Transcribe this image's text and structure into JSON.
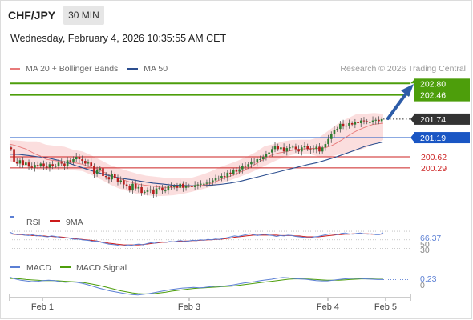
{
  "header": {
    "symbol": "CHF/JPY",
    "timeframe": "30 MIN",
    "datetime": "Wednesday, February 4, 2026 10:35:55 AM CET",
    "copyright": "Research © 2026 Trading Central"
  },
  "legend": {
    "ma20_label": "MA 20 + Bollinger Bands",
    "ma50_label": "MA 50",
    "ma20_color": "#e87a7a",
    "ma50_color": "#2c4e8f"
  },
  "chart_data": [
    {
      "type": "candlestick",
      "title": "CHF/JPY 30 MIN",
      "x_ticks": [
        "Feb 1",
        "Feb 3",
        "Feb 4",
        "Feb 5"
      ],
      "ylim": [
        199.1,
        202.95
      ],
      "levels": [
        {
          "value": 202.8,
          "label": "202.80",
          "kind": "target",
          "color": "#4d9e0b"
        },
        {
          "value": 202.46,
          "label": "202.46",
          "kind": "target",
          "color": "#4d9e0b"
        },
        {
          "value": 201.74,
          "label": "201.74",
          "kind": "last_price",
          "color": "#333333"
        },
        {
          "value": 201.19,
          "label": "201.19",
          "kind": "pivot",
          "color": "#1a56c4"
        },
        {
          "value": 200.62,
          "label": "200.62",
          "kind": "support",
          "color": "#cc2222"
        },
        {
          "value": 200.29,
          "label": "200.29",
          "kind": "support",
          "color": "#cc2222"
        }
      ],
      "candles_close": [
        200.85,
        200.48,
        200.42,
        200.52,
        200.38,
        200.45,
        200.33,
        200.3,
        200.38,
        200.35,
        200.42,
        200.33,
        200.3,
        200.4,
        200.35,
        200.35,
        200.45,
        200.42,
        200.35,
        200.52,
        200.48,
        200.55,
        200.62,
        200.55,
        200.5,
        200.42,
        200.45,
        200.35,
        200.12,
        200.22,
        200.28,
        200.05,
        200.02,
        199.95,
        200.1,
        200.0,
        199.88,
        199.92,
        199.8,
        199.75,
        199.62,
        199.82,
        199.68,
        199.72,
        199.55,
        199.58,
        199.62,
        199.65,
        199.52,
        199.68,
        199.7,
        199.62,
        199.62,
        199.75,
        199.72,
        199.75,
        199.7,
        199.82,
        199.7,
        199.76,
        199.76,
        199.72,
        199.78,
        199.8,
        199.82,
        199.82,
        199.85,
        199.88,
        199.92,
        199.98,
        200.0,
        200.05,
        200.02,
        200.15,
        200.12,
        200.22,
        200.18,
        200.25,
        200.35,
        200.32,
        200.4,
        200.48,
        200.45,
        200.55,
        200.55,
        200.62,
        200.7,
        200.75,
        200.85,
        200.95,
        200.85,
        200.9,
        200.78,
        200.88,
        200.9,
        200.92,
        200.85,
        200.78,
        200.9,
        200.95,
        200.85,
        200.82,
        200.85,
        200.92,
        200.78,
        200.9,
        201.0,
        201.15,
        201.3,
        201.42,
        201.45,
        201.6,
        201.52,
        201.55,
        201.62,
        201.58,
        201.65,
        201.62,
        201.7,
        201.68,
        201.65,
        201.65,
        201.7,
        201.72,
        201.68,
        201.74
      ],
      "ma20": [
        201.0,
        200.96,
        200.91,
        200.86,
        200.78,
        200.7,
        200.64,
        200.55,
        200.52,
        200.5,
        200.49,
        200.47,
        200.45,
        200.43,
        200.4,
        200.35,
        200.3,
        200.25,
        200.18,
        200.1,
        200.03,
        199.98,
        199.93,
        199.88,
        199.84,
        199.8,
        199.78,
        199.76,
        199.74,
        199.72,
        199.71,
        199.71,
        199.72,
        199.72,
        199.73,
        199.74,
        199.76,
        199.77,
        199.8,
        199.84,
        199.9,
        199.97,
        200.02,
        200.07,
        200.14,
        200.2,
        200.28,
        200.37,
        200.46,
        200.55,
        200.64,
        200.7,
        200.74,
        200.76,
        200.8,
        200.83,
        200.85,
        200.86,
        200.87,
        200.87,
        200.87,
        200.9,
        200.95,
        201.03,
        201.12,
        201.22,
        201.32,
        201.4,
        201.47,
        201.53,
        201.58,
        201.6,
        201.62
      ],
      "ma50": [
        200.7,
        200.69,
        200.66,
        200.62,
        200.59,
        200.52,
        200.45,
        200.35,
        200.26,
        200.17,
        200.09,
        200.02,
        199.97,
        199.93,
        199.88,
        199.84,
        199.81,
        199.78,
        199.77,
        199.76,
        199.76,
        199.78,
        199.8,
        199.84,
        199.89,
        199.96,
        200.03,
        200.1,
        200.17,
        200.24,
        200.31,
        200.38,
        200.44,
        200.52,
        200.61,
        200.71,
        200.81,
        200.92,
        201.0,
        201.06
      ],
      "bb_upper": [
        201.12,
        201.1,
        201.08,
        201.08,
        200.98,
        200.95,
        200.92,
        200.83,
        200.78,
        200.66,
        200.52,
        200.38,
        200.28,
        200.2,
        200.12,
        200.06,
        200.03,
        200.0,
        199.98,
        199.98,
        200.0,
        200.08,
        200.18,
        200.3,
        200.4,
        200.5,
        200.62,
        200.76,
        200.94,
        201.0,
        201.08,
        201.12,
        201.13,
        201.13,
        201.2,
        201.4,
        201.6,
        201.75,
        201.88,
        201.9,
        201.92,
        201.9
      ],
      "bb_lower": [
        200.5,
        200.4,
        200.32,
        200.25,
        200.22,
        200.22,
        200.22,
        200.22,
        200.2,
        200.08,
        199.95,
        199.8,
        199.68,
        199.6,
        199.52,
        199.48,
        199.45,
        199.46,
        199.48,
        199.52,
        199.58,
        199.65,
        199.72,
        199.8,
        199.9,
        200.0,
        200.1,
        200.22,
        200.35,
        200.48,
        200.6,
        200.68,
        200.72,
        200.7,
        200.62,
        200.62,
        200.68,
        200.72,
        200.8,
        200.88,
        201.0,
        201.12
      ]
    },
    {
      "type": "line",
      "title": "RSI",
      "ylim": [
        27,
        72
      ],
      "series": [
        {
          "name": "RSI",
          "color": "#5b7fd4",
          "values": [
            68,
            64,
            62,
            63,
            61,
            60,
            62,
            59,
            60,
            58,
            57,
            59,
            58,
            56,
            54,
            55,
            53,
            51,
            52,
            50,
            49,
            48,
            46,
            47,
            44,
            42,
            40,
            39,
            38,
            36,
            36,
            38,
            37,
            39,
            40,
            38,
            41,
            43,
            42,
            44,
            45,
            44,
            46,
            45,
            47,
            48,
            46,
            47,
            49,
            48,
            50,
            49,
            51,
            50,
            52,
            51,
            53,
            55,
            57,
            59,
            58,
            60,
            62,
            64,
            62,
            60,
            62,
            63,
            61,
            60,
            58,
            60,
            59,
            61,
            60,
            58,
            57,
            56,
            55,
            55,
            57,
            58,
            60,
            62,
            64,
            63,
            62,
            65,
            66,
            64,
            63,
            65,
            66,
            64,
            63,
            64,
            62,
            62,
            66.37
          ]
        },
        {
          "name": "9MA",
          "color": "#cc1a1a",
          "values": [
            64,
            63,
            62,
            62,
            61,
            61,
            60,
            60,
            59,
            59,
            58,
            58,
            57,
            57,
            56,
            55,
            54,
            53,
            52,
            51,
            50,
            49,
            48,
            47,
            45,
            44,
            42,
            41,
            40,
            39,
            38,
            38,
            38,
            38,
            38,
            39,
            40,
            41,
            42,
            43,
            44,
            44,
            45,
            45,
            46,
            46,
            47,
            47,
            48,
            48,
            49,
            49,
            50,
            50,
            51,
            51,
            52,
            53,
            54,
            56,
            57,
            58,
            59,
            60,
            61,
            61,
            61,
            61,
            61,
            61,
            61,
            60,
            60,
            60,
            60,
            59,
            59,
            58,
            57,
            57,
            57,
            57,
            58,
            59,
            60,
            61,
            62,
            62,
            63,
            63,
            64,
            64,
            64,
            64,
            64,
            63,
            63,
            63,
            63.5
          ]
        }
      ],
      "reference_labels": [
        "66.37",
        "50",
        "30"
      ]
    },
    {
      "type": "line",
      "title": "MACD",
      "ylim": [
        -0.25,
        0.38
      ],
      "series": [
        {
          "name": "MACD",
          "color": "#5b7fd4",
          "values": [
            0.3,
            0.25,
            0.21,
            0.19,
            0.17,
            0.18,
            0.2,
            0.21,
            0.2,
            0.17,
            0.15,
            0.16,
            0.15,
            0.12,
            0.08,
            0.03,
            -0.02,
            -0.06,
            -0.1,
            -0.13,
            -0.16,
            -0.19,
            -0.21,
            -0.22,
            -0.2,
            -0.18,
            -0.15,
            -0.12,
            -0.09,
            -0.06,
            -0.04,
            -0.02,
            -0.01,
            0.0,
            -0.01,
            0.0,
            0.02,
            0.04,
            0.03,
            0.05,
            0.07,
            0.1,
            0.13,
            0.15,
            0.17,
            0.2,
            0.22,
            0.24,
            0.27,
            0.29,
            0.28,
            0.26,
            0.25,
            0.24,
            0.22,
            0.2,
            0.19,
            0.19,
            0.21,
            0.23,
            0.25,
            0.26,
            0.27,
            0.26,
            0.25,
            0.24,
            0.23,
            0.23
          ]
        },
        {
          "name": "MACD Signal",
          "color": "#4d9e0b",
          "values": [
            0.26,
            0.26,
            0.25,
            0.23,
            0.22,
            0.21,
            0.2,
            0.2,
            0.2,
            0.19,
            0.18,
            0.17,
            0.16,
            0.15,
            0.12,
            0.09,
            0.06,
            0.02,
            -0.02,
            -0.06,
            -0.1,
            -0.13,
            -0.16,
            -0.18,
            -0.19,
            -0.19,
            -0.18,
            -0.16,
            -0.14,
            -0.11,
            -0.09,
            -0.07,
            -0.05,
            -0.03,
            -0.02,
            -0.01,
            0.0,
            0.01,
            0.02,
            0.03,
            0.04,
            0.06,
            0.08,
            0.1,
            0.12,
            0.14,
            0.16,
            0.18,
            0.2,
            0.22,
            0.24,
            0.25,
            0.25,
            0.25,
            0.24,
            0.23,
            0.22,
            0.21,
            0.21,
            0.21,
            0.22,
            0.23,
            0.24,
            0.25,
            0.25,
            0.25,
            0.24,
            0.24
          ]
        }
      ],
      "reference_labels": [
        "0.23",
        "0"
      ]
    }
  ]
}
